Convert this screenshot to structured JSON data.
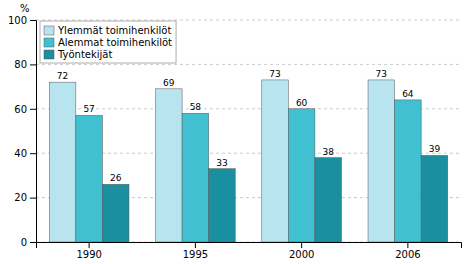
{
  "chart_data": {
    "type": "bar",
    "ylabel": "%",
    "categories": [
      "1990",
      "1995",
      "2000",
      "2006"
    ],
    "series": [
      {
        "name": "Ylemmät toimihenkilöt",
        "color": "#b8e4f0",
        "values": [
          72,
          69,
          73,
          73
        ]
      },
      {
        "name": "Alemmat toimihenkilöt",
        "color": "#40c0d0",
        "values": [
          57,
          58,
          60,
          64
        ]
      },
      {
        "name": "Työntekijät",
        "color": "#1a8fa0",
        "values": [
          26,
          33,
          38,
          39
        ]
      }
    ],
    "ylim": [
      0,
      100
    ],
    "yticks": [
      0,
      20,
      40,
      60,
      80,
      100
    ],
    "grid": true,
    "legend": "upper left",
    "data_labels": true
  }
}
